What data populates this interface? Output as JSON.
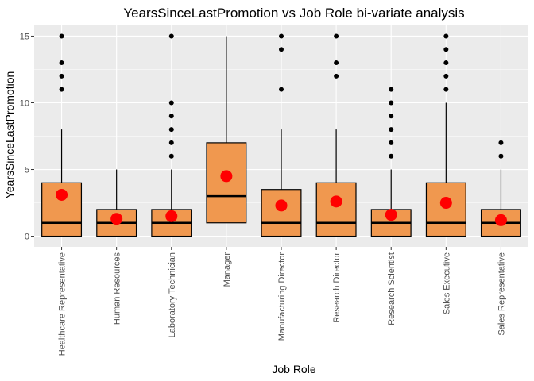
{
  "chart_data": {
    "type": "box",
    "title": "YearsSinceLastPromotion vs Job Role bi-variate analysis",
    "xlabel": "Job Role",
    "ylabel": "YearsSinceLastPromotion",
    "ylim": [
      -0.8,
      15.8
    ],
    "yticks": [
      0,
      5,
      10,
      15
    ],
    "grid": true,
    "colors": {
      "panel": "#ebebeb",
      "grid": "#ffffff",
      "box_fill": "#f0984f",
      "mean_point": "#ff0000",
      "outlier": "#000000"
    },
    "categories": [
      "Healthcare Representative",
      "Human Resources",
      "Laboratory Technician",
      "Manager",
      "Manufacturing Director",
      "Research Director",
      "Research Scientist",
      "Sales Executive",
      "Sales Representative"
    ],
    "boxes": [
      {
        "min": 0,
        "q1": 0,
        "median": 1,
        "q3": 4,
        "max": 8,
        "mean": 3.1,
        "outliers": [
          11,
          12,
          13,
          15
        ]
      },
      {
        "min": 0,
        "q1": 0,
        "median": 1,
        "q3": 2,
        "max": 5,
        "mean": 1.3,
        "outliers": []
      },
      {
        "min": 0,
        "q1": 0,
        "median": 1,
        "q3": 2,
        "max": 5,
        "mean": 1.5,
        "outliers": [
          6,
          7,
          8,
          9,
          10,
          15
        ]
      },
      {
        "min": 1,
        "q1": 1,
        "median": 3,
        "q3": 7,
        "max": 15,
        "mean": 4.5,
        "outliers": []
      },
      {
        "min": 0,
        "q1": 0,
        "median": 1,
        "q3": 3.5,
        "max": 8,
        "mean": 2.3,
        "outliers": [
          11,
          14,
          15
        ]
      },
      {
        "min": 0,
        "q1": 0,
        "median": 1,
        "q3": 4,
        "max": 8,
        "mean": 2.6,
        "outliers": [
          12,
          13,
          15
        ]
      },
      {
        "min": 0,
        "q1": 0,
        "median": 1,
        "q3": 2,
        "max": 5,
        "mean": 1.6,
        "outliers": [
          6,
          7,
          8,
          9,
          10,
          11
        ]
      },
      {
        "min": 0,
        "q1": 0,
        "median": 1,
        "q3": 4,
        "max": 10,
        "mean": 2.5,
        "outliers": [
          11,
          12,
          13,
          14,
          15
        ]
      },
      {
        "min": 0,
        "q1": 0,
        "median": 1,
        "q3": 2,
        "max": 5,
        "mean": 1.2,
        "outliers": [
          6,
          7
        ]
      }
    ]
  }
}
